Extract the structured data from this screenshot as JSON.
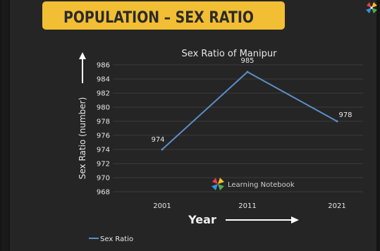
{
  "banner": {
    "title": "POPULATION – SEX RATIO"
  },
  "watermark": {
    "text": "Learning Notebook"
  },
  "colors": {
    "board": "#252525",
    "banner": "#f2be33",
    "banner_text": "#2b2b2b",
    "line": "#5b8fc7",
    "grid": "#3a3a3a",
    "text": "#e6e6e6"
  },
  "chart_data": {
    "type": "line",
    "title": "Sex Ratio of Manipur",
    "xlabel": "Year",
    "ylabel": "Sex Ratio (number)",
    "categories": [
      "2001",
      "2011",
      "2021"
    ],
    "series": [
      {
        "name": "Sex Ratio",
        "values": [
          974,
          985,
          978
        ]
      }
    ],
    "data_labels": [
      "974",
      "985",
      "978"
    ],
    "y_ticks": [
      968,
      970,
      972,
      974,
      976,
      978,
      980,
      982,
      984,
      986
    ],
    "ylim": [
      968,
      986
    ],
    "grid": true,
    "legend": "bottom-left"
  }
}
